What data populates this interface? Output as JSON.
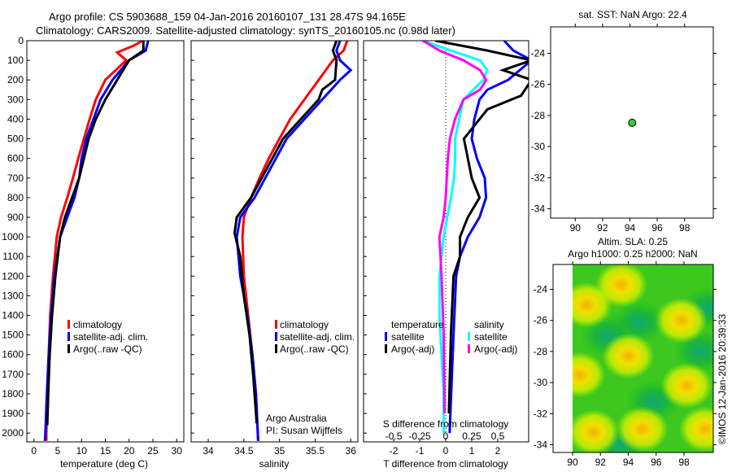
{
  "title": {
    "line1": "Argo profile: CS 5903688_159 04-Jan-2016 20160107_131 28.47S 94.165E",
    "line2": "Climatology: CARS2009. Satellite-adjusted climatology: synTS_20160105.nc (0.98d later)"
  },
  "colors": {
    "climatology": "#ff0000",
    "satellite": "#0000ff",
    "argo": "#000000",
    "sal_satellite": "#00ffff",
    "sal_argo": "#ff00ff"
  },
  "chart_data": [
    {
      "type": "line",
      "name": "temperature",
      "xlabel": "temperature (deg C)",
      "ylabel": "",
      "xlim": [
        -1.5,
        31.5
      ],
      "ylim": [
        0,
        2045
      ],
      "xticks": [
        0,
        5,
        10,
        15,
        20,
        25,
        30
      ],
      "yticks": [
        0,
        100,
        200,
        300,
        400,
        500,
        600,
        700,
        800,
        900,
        1000,
        1100,
        1200,
        1300,
        1400,
        1500,
        1600,
        1700,
        1800,
        1900,
        2000
      ],
      "legend": [
        "climatology",
        "satellite-adj. clim.",
        "Argo(..raw -QC)"
      ],
      "series": [
        {
          "name": "climatology",
          "color": "#ff0000",
          "points": [
            [
              22.8,
              0
            ],
            [
              21,
              25
            ],
            [
              17.5,
              60
            ],
            [
              19.4,
              100
            ],
            [
              15,
              200
            ],
            [
              13,
              300
            ],
            [
              11.7,
              400
            ],
            [
              10.5,
              500
            ],
            [
              9.3,
              600
            ],
            [
              8.2,
              700
            ],
            [
              7,
              800
            ],
            [
              5.7,
              900
            ],
            [
              4.8,
              1000
            ],
            [
              4,
              1200
            ],
            [
              3.4,
              1400
            ],
            [
              3.1,
              1600
            ],
            [
              2.8,
              1800
            ],
            [
              2.6,
              2000
            ],
            [
              2.6,
              2040
            ]
          ]
        },
        {
          "name": "satellite-adj. clim.",
          "color": "#0000ff",
          "points": [
            [
              24,
              0
            ],
            [
              23.5,
              50
            ],
            [
              20,
              100
            ],
            [
              16.5,
              200
            ],
            [
              14,
              300
            ],
            [
              12.5,
              400
            ],
            [
              11,
              500
            ],
            [
              10,
              600
            ],
            [
              9.5,
              700
            ],
            [
              8.5,
              800
            ],
            [
              7,
              900
            ],
            [
              5.5,
              1000
            ],
            [
              4.3,
              1200
            ],
            [
              3.6,
              1400
            ],
            [
              3.1,
              1600
            ],
            [
              2.7,
              1800
            ],
            [
              2.4,
              2000
            ],
            [
              2.3,
              2040
            ]
          ]
        },
        {
          "name": "Argo(..raw -QC)",
          "color": "#000000",
          "points": [
            [
              23,
              0
            ],
            [
              23,
              50
            ],
            [
              20,
              100
            ],
            [
              17.5,
              200
            ],
            [
              15,
              300
            ],
            [
              13,
              400
            ],
            [
              11.5,
              500
            ],
            [
              10.5,
              600
            ],
            [
              9.5,
              700
            ],
            [
              8,
              800
            ],
            [
              6.5,
              900
            ],
            [
              5.5,
              1000
            ],
            [
              4.5,
              1200
            ],
            [
              3.8,
              1400
            ],
            [
              3.3,
              1600
            ],
            [
              3,
              1800
            ],
            [
              2.8,
              1960
            ]
          ]
        }
      ]
    },
    {
      "type": "line",
      "name": "salinity",
      "xlabel": "salinity",
      "xlim": [
        33.76,
        36.1
      ],
      "ylim": [
        0,
        2045
      ],
      "xticks": [
        34,
        34.5,
        35,
        35.5,
        36
      ],
      "legend": [
        "climatology",
        "satellite-adj. clim.",
        "Argo(..raw -QC)"
      ],
      "series": [
        {
          "name": "climatology",
          "color": "#ff0000",
          "points": [
            [
              35.95,
              0
            ],
            [
              35.9,
              50
            ],
            [
              35.75,
              100
            ],
            [
              35.55,
              200
            ],
            [
              35.35,
              300
            ],
            [
              35.15,
              400
            ],
            [
              35,
              500
            ],
            [
              34.85,
              600
            ],
            [
              34.72,
              700
            ],
            [
              34.6,
              800
            ],
            [
              34.5,
              900
            ],
            [
              34.48,
              1000
            ],
            [
              34.5,
              1200
            ],
            [
              34.56,
              1400
            ],
            [
              34.62,
              1600
            ],
            [
              34.67,
              1800
            ],
            [
              34.7,
              2040
            ]
          ]
        },
        {
          "name": "satellite-adj. clim.",
          "color": "#0000ff",
          "points": [
            [
              35.85,
              0
            ],
            [
              35.8,
              50
            ],
            [
              35.85,
              100
            ],
            [
              36,
              150
            ],
            [
              35.85,
              200
            ],
            [
              35.6,
              300
            ],
            [
              35.35,
              400
            ],
            [
              35.1,
              500
            ],
            [
              34.95,
              600
            ],
            [
              34.8,
              700
            ],
            [
              34.65,
              800
            ],
            [
              34.45,
              900
            ],
            [
              34.4,
              1000
            ],
            [
              34.45,
              1200
            ],
            [
              34.55,
              1400
            ],
            [
              34.62,
              1600
            ],
            [
              34.67,
              1800
            ],
            [
              34.7,
              2040
            ]
          ]
        },
        {
          "name": "Argo(..raw -QC)",
          "color": "#000000",
          "points": [
            [
              35.8,
              0
            ],
            [
              35.75,
              50
            ],
            [
              35.8,
              100
            ],
            [
              35.78,
              200
            ],
            [
              35.6,
              250
            ],
            [
              35.55,
              300
            ],
            [
              35.3,
              400
            ],
            [
              35.05,
              500
            ],
            [
              34.9,
              600
            ],
            [
              34.75,
              700
            ],
            [
              34.6,
              800
            ],
            [
              34.4,
              900
            ],
            [
              34.37,
              980
            ],
            [
              34.45,
              1100
            ],
            [
              34.5,
              1300
            ],
            [
              34.58,
              1500
            ],
            [
              34.63,
              1700
            ],
            [
              34.68,
              1950
            ]
          ]
        }
      ],
      "annotation": [
        "Argo Australia",
        "PI: Susan Wijffels"
      ]
    },
    {
      "type": "line",
      "name": "difference",
      "xlabel": "T difference from climatology",
      "x2label": "S difference from climatology",
      "xlim": [
        -3.16,
        3.19
      ],
      "x2lim": [
        -0.79,
        0.8
      ],
      "ylim": [
        0,
        2045
      ],
      "xticks": [
        -2,
        -1,
        0,
        1,
        2
      ],
      "x2ticks": [
        "-0.5",
        "-0.25",
        "0",
        "0.25",
        "0.5"
      ],
      "legend_titles": [
        "temperature",
        "salinity"
      ],
      "legend": [
        "satellite",
        "Argo(-adj)",
        "satellite",
        "Argo(-adj)"
      ],
      "series": [
        {
          "name": "T satellite",
          "axis": "T",
          "color": "#0000ff",
          "points": [
            [
              2.25,
              0
            ],
            [
              2.6,
              50
            ],
            [
              3.3,
              100
            ],
            [
              2.4,
              200
            ],
            [
              1.6,
              250
            ],
            [
              1.3,
              300
            ],
            [
              1.1,
              400
            ],
            [
              1,
              500
            ],
            [
              1.2,
              600
            ],
            [
              1.5,
              700
            ],
            [
              1.55,
              800
            ],
            [
              1.3,
              900
            ],
            [
              0.85,
              1000
            ],
            [
              0.55,
              1100
            ],
            [
              0.4,
              1200
            ],
            [
              0.3,
              1500
            ],
            [
              0.15,
              2000
            ]
          ]
        },
        {
          "name": "T Argo(-adj)",
          "axis": "T",
          "color": "#000000",
          "points": [
            [
              -0.4,
              0
            ],
            [
              1.6,
              50
            ],
            [
              3.3,
              100
            ],
            [
              2.2,
              150
            ],
            [
              3.3,
              200
            ],
            [
              2.9,
              280
            ],
            [
              1.6,
              350
            ],
            [
              1.3,
              400
            ],
            [
              0.7,
              500
            ],
            [
              0.85,
              600
            ],
            [
              1,
              700
            ],
            [
              1.3,
              800
            ],
            [
              0.85,
              900
            ],
            [
              0.55,
              1000
            ],
            [
              0.55,
              1100
            ],
            [
              0.3,
              1200
            ],
            [
              0.2,
              1500
            ],
            [
              0.12,
              1900
            ]
          ]
        },
        {
          "name": "S satellite",
          "axis": "S",
          "color": "#00ffff",
          "points": [
            [
              -0.22,
              0
            ],
            [
              0.05,
              50
            ],
            [
              0.33,
              100
            ],
            [
              0.4,
              150
            ],
            [
              0.36,
              200
            ],
            [
              0.17,
              300
            ],
            [
              0.13,
              400
            ],
            [
              0.09,
              500
            ],
            [
              0.09,
              600
            ],
            [
              0.08,
              700
            ],
            [
              0.05,
              800
            ],
            [
              -0.02,
              1000
            ],
            [
              -0.06,
              1200
            ],
            [
              -0.06,
              1400
            ],
            [
              -0.02,
              1800
            ],
            [
              -0.02,
              2000
            ]
          ]
        },
        {
          "name": "S Argo(-adj)",
          "axis": "S",
          "color": "#ff00ff",
          "points": [
            [
              -0.22,
              0
            ],
            [
              -0.06,
              50
            ],
            [
              0.17,
              100
            ],
            [
              0.33,
              150
            ],
            [
              0.39,
              200
            ],
            [
              0.33,
              250
            ],
            [
              0.17,
              300
            ],
            [
              0.09,
              400
            ],
            [
              0.04,
              500
            ],
            [
              0.02,
              600
            ],
            [
              0,
              800
            ],
            [
              -0.02,
              900
            ],
            [
              -0.06,
              1000
            ],
            [
              -0.04,
              1200
            ],
            [
              -0.02,
              1500
            ],
            [
              -0.01,
              1900
            ]
          ]
        }
      ]
    },
    {
      "type": "scatter",
      "name": "sst-map",
      "title": "sat. SST: NaN  Argo: 22.4",
      "xlim": [
        88.2,
        100.1
      ],
      "ylim": [
        -34.6,
        -22.3
      ],
      "xticks": [
        90,
        92,
        94,
        96,
        98
      ],
      "yticks": [
        -24,
        -26,
        -28,
        -30,
        -32,
        -34
      ],
      "points": [
        {
          "lon": 94.165,
          "lat": -28.47,
          "color": "#33cc33"
        }
      ]
    },
    {
      "type": "heatmap",
      "name": "sla-map",
      "title1": "Altim. SLA: 0.25",
      "title2": "Argo h1000: 0.25 h2000: NaN",
      "xlim": [
        88.6,
        100.1
      ],
      "ylim": [
        -34.5,
        -22.4
      ],
      "data_lon_range": [
        90,
        100.1
      ],
      "xticks": [
        90,
        92,
        94,
        96,
        98
      ],
      "yticks": [
        -24,
        -26,
        -28,
        -30,
        -32,
        -34
      ],
      "highs": [
        [
          93.5,
          -23.7
        ],
        [
          97.8,
          -26
        ],
        [
          94,
          -28.3
        ],
        [
          98.2,
          -30.2
        ],
        [
          95,
          -33
        ],
        [
          91,
          -25
        ],
        [
          90.5,
          -29.5
        ],
        [
          91.5,
          -33.2
        ],
        [
          99.5,
          -33
        ]
      ],
      "lows": [
        [
          94.8,
          -26.1
        ],
        [
          99.8,
          -25.2
        ],
        [
          99.2,
          -28
        ],
        [
          95.8,
          -31.2
        ],
        [
          92.5,
          -27
        ],
        [
          93.5,
          -34
        ]
      ]
    }
  ],
  "credit": "©IMOS 12-Jan-2016 20:39:33"
}
